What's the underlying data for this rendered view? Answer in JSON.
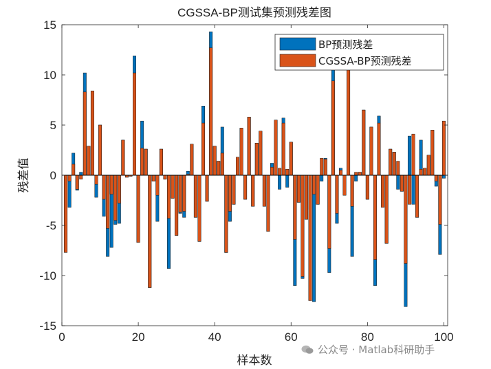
{
  "chart_data": {
    "type": "bar",
    "title": "CGSSA-BP测试集预测残差图",
    "xlabel": "样本数",
    "ylabel": "残差值",
    "xlim": [
      0,
      101
    ],
    "ylim": [
      -15,
      15
    ],
    "xticks": [
      0,
      20,
      40,
      60,
      80,
      100
    ],
    "yticks": [
      -15,
      -10,
      -5,
      0,
      5,
      10,
      15
    ],
    "grid": false,
    "legend_position": "top-right",
    "x": [
      1,
      2,
      3,
      4,
      5,
      6,
      7,
      8,
      9,
      10,
      11,
      12,
      13,
      14,
      15,
      16,
      17,
      18,
      19,
      20,
      21,
      22,
      23,
      24,
      25,
      26,
      27,
      28,
      29,
      30,
      31,
      32,
      33,
      34,
      35,
      36,
      37,
      38,
      39,
      40,
      41,
      42,
      43,
      44,
      45,
      46,
      47,
      48,
      49,
      50,
      51,
      52,
      53,
      54,
      55,
      56,
      57,
      58,
      59,
      60,
      61,
      62,
      63,
      64,
      65,
      66,
      67,
      68,
      69,
      70,
      71,
      72,
      73,
      74,
      75,
      76,
      77,
      78,
      79,
      80,
      81,
      82,
      83,
      84,
      85,
      86,
      87,
      88,
      89,
      90,
      91,
      92,
      93,
      94,
      95,
      96,
      97,
      98,
      99,
      100
    ],
    "series": [
      {
        "name": "BP预测残差",
        "color": "#0072BD",
        "values": [
          -7.6,
          -3.2,
          2.2,
          -1.5,
          0.3,
          10.2,
          2.9,
          8.4,
          -2.2,
          5,
          -4.1,
          -8.1,
          -7.2,
          -4.9,
          -4.8,
          3.5,
          -0.2,
          -0.1,
          11.9,
          -6.7,
          5.4,
          2.6,
          -11.2,
          -0.6,
          -4.6,
          2.6,
          -0.4,
          -9.3,
          -2.3,
          -6,
          -3.8,
          -4.2,
          0.4,
          3.1,
          -4.2,
          -6.6,
          6.9,
          -2.6,
          14.3,
          2.9,
          1.4,
          4.8,
          -7.7,
          -4.6,
          -2.9,
          1.8,
          4.7,
          -2.4,
          5.8,
          -3.1,
          3.2,
          4.4,
          -3.1,
          -5.6,
          1.2,
          5.5,
          -1.4,
          5.7,
          -1.2,
          3.3,
          -11,
          -2.7,
          -10.3,
          -4.4,
          -3.4,
          -12.6,
          -2.9,
          -0.6,
          1.7,
          -9.7,
          11.4,
          -4.8,
          0.7,
          -2,
          10.5,
          -8.1,
          -0.6,
          0.3,
          6.5,
          -2.4,
          4.8,
          -11,
          5.9,
          -3.2,
          -6.8,
          2.6,
          2.3,
          -1.4,
          -1.6,
          -13.1,
          3.9,
          -2.9,
          -4.2,
          3.5,
          0.7,
          2,
          4.5,
          -1.1,
          -7.9,
          -0.3
        ],
        "z_order": "back"
      },
      {
        "name": "CGSSA-BP预测残差",
        "color": "#D95319",
        "values": [
          -7.7,
          -0.6,
          1.1,
          -1.4,
          -0.4,
          8.3,
          2.9,
          8.4,
          -0.9,
          5,
          -2.4,
          -5.3,
          -1.9,
          -4.5,
          -2.8,
          3.5,
          -0.2,
          -0.1,
          10.2,
          -6.7,
          2.7,
          2.6,
          -11.2,
          -0.6,
          -2,
          2.6,
          -0.4,
          -4.3,
          -2.3,
          -6,
          -3.7,
          -3.6,
          0.1,
          3.1,
          -4.2,
          -6.6,
          5.2,
          -2.6,
          12.7,
          2.9,
          1.4,
          2.2,
          -7.7,
          -3.6,
          -2.9,
          1.8,
          4.7,
          -2.4,
          5.8,
          -3.1,
          3.2,
          4.4,
          -3.1,
          -5.6,
          0.8,
          5.5,
          0.7,
          5.2,
          0.6,
          3.3,
          -6.4,
          -2.7,
          -10.1,
          -4.4,
          -12.5,
          -1.9,
          -2.9,
          1.7,
          1.6,
          -7.3,
          9.4,
          -3.8,
          0.5,
          -2,
          10.5,
          -3.1,
          0.3,
          0.3,
          6.5,
          -2.4,
          4.8,
          -8.4,
          5.2,
          -3.2,
          -6.8,
          2.6,
          2.3,
          1.4,
          -1.6,
          -8.8,
          -2.9,
          4.1,
          -4.2,
          0.6,
          0.7,
          2,
          4.5,
          -0.6,
          -4.9,
          5.4
        ],
        "z_order": "front"
      }
    ]
  },
  "watermark": {
    "text": "公众号 · Matlab科研助手"
  }
}
